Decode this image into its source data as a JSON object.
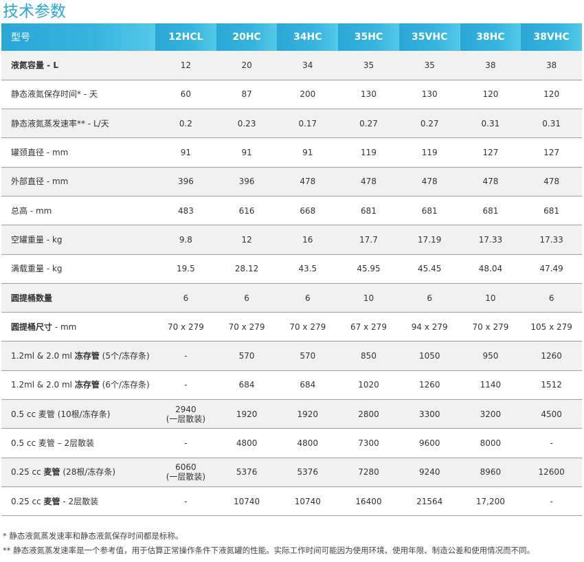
{
  "title": "技术参数",
  "table": {
    "header": [
      "型号",
      "12HCL",
      "20HC",
      "34HC",
      "35HC",
      "35VHC",
      "38HC",
      "38VHC"
    ],
    "rows": [
      {
        "label": [
          {
            "t": "液氮容量 - L",
            "b": true
          }
        ],
        "cells": [
          "12",
          "20",
          "34",
          "35",
          "35",
          "38",
          "38"
        ]
      },
      {
        "label": [
          {
            "t": "静态液氮保存时间* - 天",
            "b": false
          }
        ],
        "cells": [
          "60",
          "87",
          "200",
          "130",
          "130",
          "120",
          "120"
        ]
      },
      {
        "label": [
          {
            "t": "静态液氮蒸发速率** - L/天",
            "b": false
          }
        ],
        "cells": [
          "0.2",
          "0.23",
          "0.17",
          "0.27",
          "0.27",
          "0.31",
          "0.31"
        ]
      },
      {
        "label": [
          {
            "t": "罐颈直径 - mm",
            "b": false
          }
        ],
        "cells": [
          "91",
          "91",
          "91",
          "119",
          "119",
          "127",
          "127"
        ]
      },
      {
        "label": [
          {
            "t": "外部直径 - mm",
            "b": false
          }
        ],
        "cells": [
          "396",
          "396",
          "478",
          "478",
          "478",
          "478",
          "478"
        ]
      },
      {
        "label": [
          {
            "t": "总高 - mm",
            "b": false
          }
        ],
        "cells": [
          "483",
          "616",
          "668",
          "681",
          "681",
          "681",
          "681"
        ]
      },
      {
        "label": [
          {
            "t": "空罐重量 - kg",
            "b": false
          }
        ],
        "cells": [
          "9.8",
          "12",
          "16",
          "17.7",
          "17.19",
          "17.33",
          "17.33"
        ]
      },
      {
        "label": [
          {
            "t": "满载重量 - kg",
            "b": false
          }
        ],
        "cells": [
          "19.5",
          "28.12",
          "43.5",
          "45.95",
          "45.45",
          "48.04",
          "47.49"
        ]
      },
      {
        "label": [
          {
            "t": "圆提桶数量",
            "b": true
          }
        ],
        "cells": [
          "6",
          "6",
          "6",
          "10",
          "6",
          "10",
          "6"
        ]
      },
      {
        "label": [
          {
            "t": "圆提桶尺寸",
            "b": true
          },
          {
            "t": " - mm",
            "b": false
          }
        ],
        "cells": [
          "70 x 279",
          "70 x 279",
          "70 x 279",
          "67 x 279",
          "94 x 279",
          "70 x 279",
          "105 x 279"
        ]
      },
      {
        "label": [
          {
            "t": "1.2ml & 2.0 ml ",
            "b": false
          },
          {
            "t": "冻存管",
            "b": true
          },
          {
            "t": " (5个/冻存条)",
            "b": false
          }
        ],
        "cells": [
          "-",
          "570",
          "570",
          "850",
          "1050",
          "950",
          "1260"
        ]
      },
      {
        "label": [
          {
            "t": "1.2ml & 2.0 ml ",
            "b": false
          },
          {
            "t": "冻存管",
            "b": true
          },
          {
            "t": " (6个/冻存条)",
            "b": false
          }
        ],
        "cells": [
          "-",
          "684",
          "684",
          "1020",
          "1260",
          "1140",
          "1512"
        ]
      },
      {
        "label": [
          {
            "t": "0.5 cc 麦管 (10根/冻存条)",
            "b": false
          }
        ],
        "cells": [
          "2940\n(一层散装)",
          "1920",
          "1920",
          "2800",
          "3300",
          "3200",
          "4500"
        ]
      },
      {
        "label": [
          {
            "t": "0.5 cc 麦管 – 2层散装",
            "b": false
          }
        ],
        "cells": [
          "-",
          "4800",
          "4800",
          "7300",
          "9600",
          "8000",
          "-"
        ]
      },
      {
        "label": [
          {
            "t": "0.25 cc ",
            "b": false
          },
          {
            "t": "麦管",
            "b": true
          },
          {
            "t": " (28根/冻存条)",
            "b": false
          }
        ],
        "cells": [
          "6060\n(一层散装)",
          "5376",
          "5376",
          "7280",
          "9240",
          "8960",
          "12600"
        ]
      },
      {
        "label": [
          {
            "t": "0.25 cc ",
            "b": false
          },
          {
            "t": "麦管",
            "b": true
          },
          {
            "t": " - 2层散装",
            "b": false
          }
        ],
        "cells": [
          "-",
          "10740",
          "10740",
          "16400",
          "21564",
          "17,200",
          "-"
        ]
      }
    ]
  },
  "footnotes": [
    "* 静态液氮蒸发速率和静态液氮保存时间都是标称。",
    "** 静态液氮蒸发速率是一个参考值，用于估算正常操作条件下液氮罐的性能。实际工作时间可能因为使用环境、使用年限、制造公差和使用情况而不同。"
  ]
}
